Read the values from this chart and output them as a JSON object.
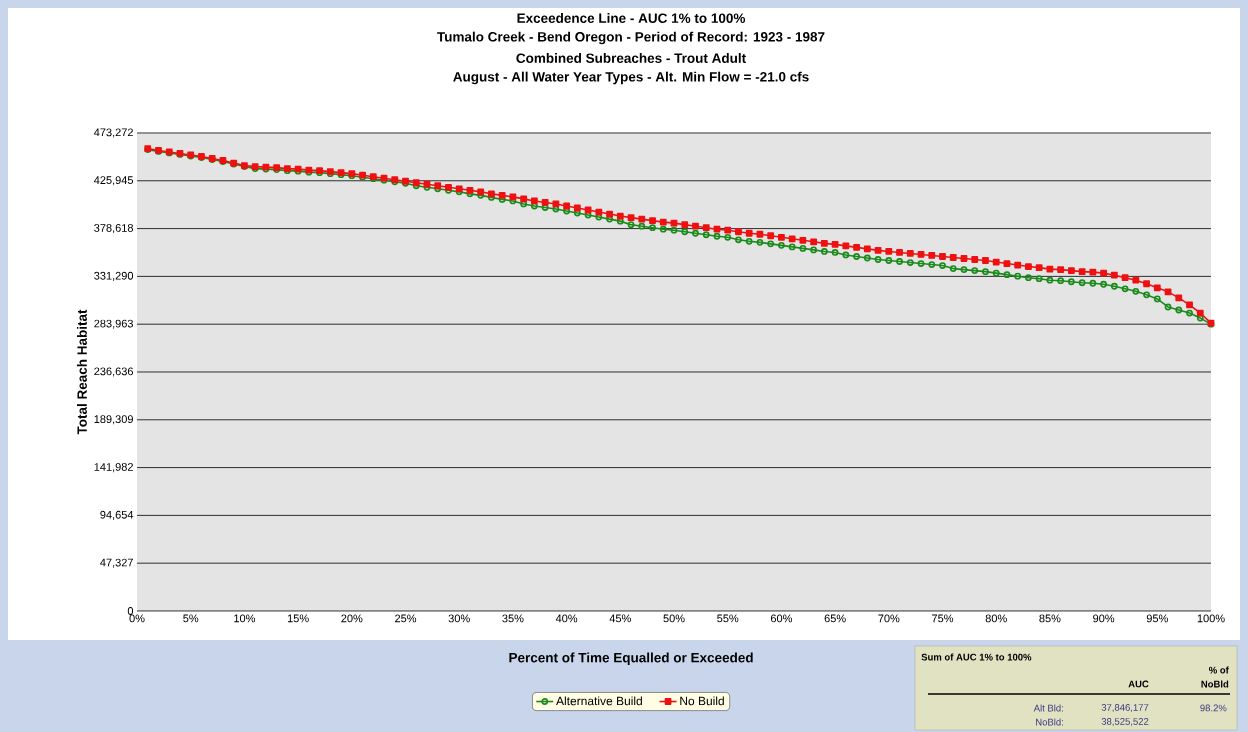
{
  "chart_data": {
    "type": "line",
    "title": "Exceedence Line - AUC 1% to 100%",
    "subtitle": "Tumalo Creek - Bend Oregon - Period of Record: 1923 - 1987",
    "annotations": [
      "Combined Subreaches - Trout Adult",
      "August - All Water Year Types - Alt. Min Flow = -21.0 cfs",
      "Sum of AUC 1% to 100%",
      "AUC",
      "% of",
      "NoBld",
      "Alt Bld:",
      "37,846,177",
      "98.2%",
      "NoBld:",
      "38,525,522"
    ],
    "xlabel": "Percent of Time Equalled or Exceeded",
    "ylabel": "Total Reach Habitat",
    "x": [
      1,
      2,
      3,
      4,
      5,
      6,
      7,
      8,
      9,
      10,
      11,
      12,
      13,
      14,
      15,
      16,
      17,
      18,
      19,
      20,
      21,
      22,
      23,
      24,
      25,
      26,
      27,
      28,
      29,
      30,
      31,
      32,
      33,
      34,
      35,
      36,
      37,
      38,
      39,
      40,
      41,
      42,
      43,
      44,
      45,
      46,
      47,
      48,
      49,
      50,
      51,
      52,
      53,
      54,
      55,
      56,
      57,
      58,
      59,
      60,
      61,
      62,
      63,
      64,
      65,
      66,
      67,
      68,
      69,
      70,
      71,
      72,
      73,
      74,
      75,
      76,
      77,
      78,
      79,
      80,
      81,
      82,
      83,
      84,
      85,
      86,
      87,
      88,
      89,
      90,
      91,
      92,
      93,
      94,
      95,
      96,
      97,
      98,
      99,
      100
    ],
    "series": [
      {
        "name": "Alternative Build",
        "color": "#1a8a1a",
        "marker": "circle",
        "values": [
          456800,
          455000,
          453500,
          452000,
          450500,
          449000,
          447000,
          445000,
          442500,
          440000,
          438000,
          437500,
          437000,
          436000,
          435500,
          434500,
          434000,
          433000,
          432000,
          431000,
          429500,
          428000,
          426500,
          425000,
          423500,
          421000,
          419500,
          418000,
          416500,
          415000,
          413000,
          411500,
          409500,
          407500,
          406000,
          403000,
          401000,
          399500,
          398000,
          396000,
          394000,
          392000,
          390000,
          388000,
          386000,
          382500,
          381000,
          379500,
          378000,
          377000,
          375500,
          374000,
          372500,
          371000,
          370000,
          367500,
          366000,
          365000,
          363500,
          362000,
          360500,
          359000,
          357500,
          356000,
          355000,
          352500,
          351000,
          349500,
          348000,
          347000,
          346000,
          345000,
          344000,
          343000,
          342000,
          339000,
          338000,
          337000,
          336000,
          334500,
          333000,
          331500,
          330000,
          329000,
          327500,
          327000,
          326000,
          325000,
          324500,
          323500,
          321500,
          319000,
          316500,
          313000,
          309000,
          301000,
          298000,
          295000,
          290000,
          284000
        ]
      },
      {
        "name": "No Build",
        "color": "#ee1111",
        "marker": "square",
        "values": [
          457800,
          456000,
          454500,
          453000,
          451500,
          450000,
          448000,
          446000,
          443500,
          441000,
          440000,
          439500,
          439000,
          438000,
          437500,
          436500,
          436000,
          435000,
          434000,
          433000,
          431500,
          430000,
          428500,
          427000,
          425500,
          424000,
          422500,
          421000,
          419500,
          418000,
          416500,
          415000,
          413000,
          411500,
          410000,
          408000,
          406000,
          404500,
          403000,
          401000,
          399000,
          397000,
          395000,
          393000,
          391000,
          389500,
          388000,
          386500,
          385000,
          384000,
          382500,
          381000,
          379500,
          378000,
          377000,
          375500,
          374000,
          373000,
          371500,
          370000,
          368500,
          367000,
          365500,
          364000,
          363000,
          361500,
          360000,
          358500,
          357000,
          356000,
          355000,
          354000,
          353000,
          352000,
          351000,
          350000,
          349000,
          348000,
          347000,
          345500,
          344000,
          342500,
          341000,
          340000,
          338500,
          338000,
          337000,
          336000,
          335500,
          334500,
          332500,
          330000,
          327500,
          324000,
          320000,
          316000,
          310000,
          303000,
          295000,
          285000
        ]
      }
    ],
    "xlim": [
      0,
      100
    ],
    "xticks": [
      {
        "value": 0,
        "label": "0%"
      },
      {
        "value": 5,
        "label": "5%"
      },
      {
        "value": 10,
        "label": "10%"
      },
      {
        "value": 15,
        "label": "15%"
      },
      {
        "value": 20,
        "label": "20%"
      },
      {
        "value": 25,
        "label": "25%"
      },
      {
        "value": 30,
        "label": "30%"
      },
      {
        "value": 35,
        "label": "35%"
      },
      {
        "value": 40,
        "label": "40%"
      },
      {
        "value": 45,
        "label": "45%"
      },
      {
        "value": 50,
        "label": "50%"
      },
      {
        "value": 55,
        "label": "55%"
      },
      {
        "value": 60,
        "label": "60%"
      },
      {
        "value": 65,
        "label": "65%"
      },
      {
        "value": 70,
        "label": "70%"
      },
      {
        "value": 75,
        "label": "75%"
      },
      {
        "value": 80,
        "label": "80%"
      },
      {
        "value": 85,
        "label": "85%"
      },
      {
        "value": 90,
        "label": "90%"
      },
      {
        "value": 95,
        "label": "95%"
      },
      {
        "value": 100,
        "label": "100%"
      }
    ],
    "ylim": [
      0,
      473272
    ],
    "yticks": [
      0,
      {
        "value": 47327,
        "label": "47,327"
      },
      {
        "value": 94654,
        "label": "94,654"
      },
      {
        "value": 141982,
        "label": "141,982"
      },
      {
        "value": 189309,
        "label": "189,309"
      },
      {
        "value": 236636,
        "label": "236,636"
      },
      {
        "value": 283963,
        "label": "283,963"
      },
      {
        "value": 331290,
        "label": "331,290"
      },
      {
        "value": 378618,
        "label": "378,618"
      },
      {
        "value": 425945,
        "label": "425,945"
      },
      {
        "value": 473272,
        "label": "473,272"
      }
    ],
    "grid": "y",
    "legend": "bottom"
  }
}
